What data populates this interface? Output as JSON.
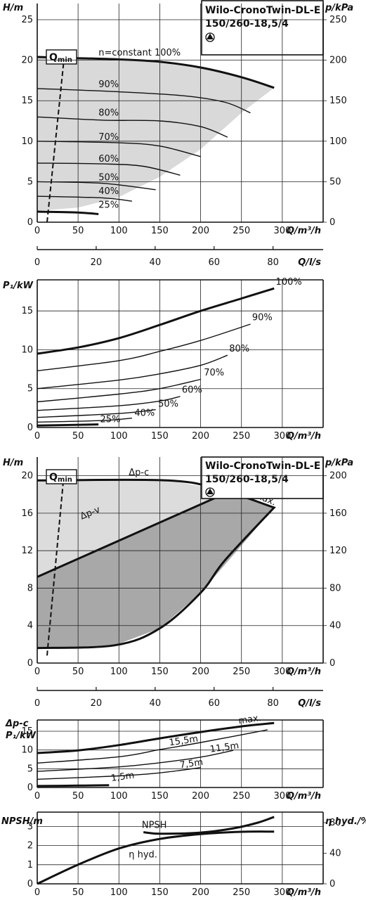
{
  "title_line1": "Wilo-CronoTwin-DL-E",
  "title_line2": "150/260-18,5/4",
  "qmin_label": "Q",
  "qmin_sub": "min",
  "chart_data": [
    {
      "id": "h1",
      "type": "line",
      "ylabel": "H/m",
      "y2label": "p/kPa",
      "xlabel": "Q/m³/h",
      "xlim": [
        0,
        350
      ],
      "ylim": [
        0,
        27
      ],
      "y2lim": [
        0,
        270
      ],
      "xticks": [
        "0",
        "50",
        "100",
        "150",
        "200",
        "250",
        "300"
      ],
      "yticks": [
        "0",
        "5",
        "10",
        "15",
        "20",
        "25"
      ],
      "y2ticks": [
        "0",
        "50",
        "100",
        "150",
        "200",
        "250"
      ],
      "envelope": [
        [
          0,
          20.4
        ],
        [
          100,
          20.1
        ],
        [
          200,
          19
        ],
        [
          250,
          17.8
        ],
        [
          290,
          16.6
        ],
        [
          250,
          13.5
        ],
        [
          200,
          9
        ],
        [
          150,
          5.6
        ],
        [
          100,
          3.1
        ],
        [
          50,
          1.8
        ],
        [
          0,
          1.4
        ]
      ],
      "qmin": [
        [
          12,
          0
        ],
        [
          33,
          20.4
        ]
      ],
      "series": [
        {
          "name": "n=constant 100%",
          "values": [
            [
              0,
              20.4
            ],
            [
              50,
              20.25
            ],
            [
              100,
              20.1
            ],
            [
              150,
              19.8
            ],
            [
              200,
              19.1
            ],
            [
              250,
              17.9
            ],
            [
              290,
              16.6
            ]
          ]
        },
        {
          "name": "90%",
          "values": [
            [
              0,
              16.5
            ],
            [
              100,
              16.1
            ],
            [
              180,
              15.6
            ],
            [
              230,
              14.8
            ],
            [
              261,
              13.5
            ]
          ]
        },
        {
          "name": "80%",
          "values": [
            [
              0,
              13
            ],
            [
              80,
              12.6
            ],
            [
              150,
              12.5
            ],
            [
              200,
              11.8
            ],
            [
              233,
              10.5
            ]
          ]
        },
        {
          "name": "70%",
          "values": [
            [
              0,
              10
            ],
            [
              100,
              9.8
            ],
            [
              150,
              9.4
            ],
            [
              200,
              8.1
            ]
          ]
        },
        {
          "name": "60%",
          "values": [
            [
              0,
              7.3
            ],
            [
              80,
              7.2
            ],
            [
              130,
              6.9
            ],
            [
              175,
              5.8
            ]
          ]
        },
        {
          "name": "50%",
          "values": [
            [
              0,
              5
            ],
            [
              80,
              4.8
            ],
            [
              145,
              4
            ]
          ]
        },
        {
          "name": "40%",
          "values": [
            [
              0,
              3.2
            ],
            [
              80,
              3
            ],
            [
              116,
              2.6
            ]
          ]
        },
        {
          "name": "25%",
          "values": [
            [
              0,
              1.3
            ],
            [
              50,
              1.2
            ],
            [
              75,
              1
            ]
          ]
        }
      ],
      "labels": [
        {
          "text": "n=constant 100%",
          "x": 75,
          "y": 20.4
        },
        {
          "text": "90%",
          "x": 75,
          "y": 16.5
        },
        {
          "text": "80%",
          "x": 75,
          "y": 13.0
        },
        {
          "text": "70%",
          "x": 75,
          "y": 10.0
        },
        {
          "text": "60%",
          "x": 75,
          "y": 7.3
        },
        {
          "text": "50%",
          "x": 75,
          "y": 5.0
        },
        {
          "text": "40%",
          "x": 75,
          "y": 3.3
        },
        {
          "text": "25%",
          "x": 75,
          "y": 1.6
        }
      ]
    },
    {
      "id": "ls1",
      "type": "axis",
      "xlabel": "Q/l/s",
      "xlim": [
        0,
        97
      ],
      "xticks": [
        "0",
        "20",
        "40",
        "60",
        "80"
      ]
    },
    {
      "id": "p1",
      "type": "line",
      "ylabel": "P₁/kW",
      "xlabel": "Q/m³/h",
      "xlim": [
        0,
        350
      ],
      "ylim": [
        0,
        19
      ],
      "xticks": [
        "0",
        "50",
        "100",
        "150",
        "200",
        "250",
        "300"
      ],
      "yticks": [
        "0",
        "5",
        "10",
        "15"
      ],
      "series": [
        {
          "name": "100%",
          "values": [
            [
              0,
              9.5
            ],
            [
              50,
              10.3
            ],
            [
              100,
              11.5
            ],
            [
              150,
              13.2
            ],
            [
              200,
              15
            ],
            [
              250,
              16.6
            ],
            [
              290,
              17.9
            ]
          ]
        },
        {
          "name": "90%",
          "values": [
            [
              0,
              7.3
            ],
            [
              100,
              8.6
            ],
            [
              150,
              9.8
            ],
            [
              200,
              11.2
            ],
            [
              261,
              13.3
            ]
          ]
        },
        {
          "name": "80%",
          "values": [
            [
              0,
              5
            ],
            [
              100,
              6.1
            ],
            [
              150,
              6.9
            ],
            [
              200,
              8
            ],
            [
              233,
              9.3
            ]
          ]
        },
        {
          "name": "70%",
          "values": [
            [
              0,
              3.3
            ],
            [
              100,
              4.3
            ],
            [
              150,
              5
            ],
            [
              200,
              6.2
            ]
          ]
        },
        {
          "name": "60%",
          "values": [
            [
              0,
              2.2
            ],
            [
              100,
              2.8
            ],
            [
              150,
              3.4
            ],
            [
              175,
              4
            ]
          ]
        },
        {
          "name": "50%",
          "values": [
            [
              0,
              1.3
            ],
            [
              100,
              1.8
            ],
            [
              145,
              2.3
            ]
          ]
        },
        {
          "name": "40%",
          "values": [
            [
              0,
              0.7
            ],
            [
              80,
              0.9
            ],
            [
              116,
              1.2
            ]
          ]
        },
        {
          "name": "25%",
          "values": [
            [
              0,
              0.25
            ],
            [
              75,
              0.4
            ]
          ]
        }
      ],
      "labels": [
        {
          "text": "100%",
          "x": 292,
          "y": 18.2
        },
        {
          "text": "90%",
          "x": 263,
          "y": 13.6
        },
        {
          "text": "80%",
          "x": 235,
          "y": 9.6
        },
        {
          "text": "70%",
          "x": 204,
          "y": 6.5
        },
        {
          "text": "60%",
          "x": 177,
          "y": 4.3
        },
        {
          "text": "50%",
          "x": 148,
          "y": 2.5
        },
        {
          "text": "40%",
          "x": 119,
          "y": 1.3
        },
        {
          "text": "25%",
          "x": 77,
          "y": 0.5
        }
      ]
    },
    {
      "id": "h2",
      "type": "area",
      "ylabel": "H/m",
      "y2label": "p/kPa",
      "xlabel": "Q/m³/h",
      "xlim": [
        0,
        350
      ],
      "ylim": [
        0,
        22
      ],
      "y2lim": [
        0,
        220
      ],
      "xticks": [
        "0",
        "50",
        "100",
        "150",
        "200",
        "250",
        "300"
      ],
      "yticks": [
        "0",
        "4",
        "8",
        "12",
        "16",
        "20"
      ],
      "y2ticks": [
        "0",
        "40",
        "80",
        "120",
        "160",
        "200"
      ],
      "light_area": [
        [
          0,
          19.5
        ],
        [
          160,
          19.5
        ],
        [
          225,
          18.5
        ],
        [
          290,
          16.6
        ],
        [
          235,
          18.3
        ],
        [
          0,
          9.2
        ]
      ],
      "dark_area": [
        [
          0,
          9.2
        ],
        [
          235,
          18.3
        ],
        [
          290,
          16.6
        ],
        [
          200,
          7.5
        ],
        [
          150,
          3.7
        ],
        [
          95,
          1.9
        ],
        [
          0,
          1.6
        ]
      ],
      "outline": [
        [
          0,
          19.5
        ],
        [
          160,
          19.5
        ],
        [
          225,
          18.5
        ],
        [
          290,
          16.6
        ],
        [
          230,
          11
        ],
        [
          200,
          7.5
        ],
        [
          150,
          3.7
        ],
        [
          95,
          1.9
        ],
        [
          0,
          1.6
        ]
      ],
      "dpv": [
        [
          0,
          9.2
        ],
        [
          235,
          18.3
        ]
      ],
      "qmin": [
        [
          12,
          0.8
        ],
        [
          32,
          19.5
        ]
      ],
      "labels": [
        {
          "text": "Δp-c",
          "x": 112,
          "y": 19.9
        },
        {
          "text": "Δp-v",
          "x": 55,
          "y": 15.2
        },
        {
          "text": "max.",
          "x": 264,
          "y": 17.6
        }
      ]
    },
    {
      "id": "ls2",
      "type": "axis",
      "xlabel": "Q/l/s",
      "xlim": [
        0,
        97
      ],
      "xticks": [
        "0",
        "20",
        "40",
        "60",
        "80"
      ]
    },
    {
      "id": "p2",
      "type": "line",
      "ylabel1": "Δp-c",
      "ylabel": "P₁/kW",
      "xlabel": "Q/m³/h",
      "xlim": [
        0,
        350
      ],
      "ylim": [
        0,
        18
      ],
      "xticks": [
        "0",
        "50",
        "100",
        "150",
        "200",
        "250",
        "300"
      ],
      "yticks": [
        "0",
        "5",
        "10",
        "15"
      ],
      "series": [
        {
          "name": "max.",
          "values": [
            [
              0,
              9.2
            ],
            [
              50,
              9.9
            ],
            [
              100,
              11.3
            ],
            [
              150,
              13.1
            ],
            [
              200,
              14.8
            ],
            [
              250,
              16.3
            ],
            [
              290,
              17.2
            ]
          ]
        },
        {
          "name": "15,5m",
          "values": [
            [
              0,
              6.5
            ],
            [
              100,
              8.2
            ],
            [
              150,
              10.1
            ],
            [
              200,
              12
            ],
            [
              282,
              15.4
            ]
          ]
        },
        {
          "name": "11,5m",
          "values": [
            [
              0,
              4.3
            ],
            [
              100,
              5.5
            ],
            [
              150,
              6.6
            ],
            [
              200,
              8.1
            ],
            [
              240,
              9.9
            ]
          ]
        },
        {
          "name": "7,5m",
          "values": [
            [
              0,
              2.2
            ],
            [
              100,
              3.1
            ],
            [
              150,
              3.9
            ],
            [
              200,
              5.3
            ]
          ]
        },
        {
          "name": "1,5m",
          "values": [
            [
              0,
              0.4
            ],
            [
              50,
              0.5
            ],
            [
              88,
              0.6
            ]
          ]
        }
      ],
      "labels": [
        {
          "text": "max.",
          "x": 247,
          "y": 16.8
        },
        {
          "text": "15,5m",
          "x": 162,
          "y": 11.0
        },
        {
          "text": "11,5m",
          "x": 212,
          "y": 9.2
        },
        {
          "text": "7,5m",
          "x": 175,
          "y": 5.0
        },
        {
          "text": "1,5m",
          "x": 91,
          "y": 1.5
        }
      ]
    },
    {
      "id": "np",
      "type": "line",
      "ylabel": "NPSH/m",
      "y2label": "η hyd./%",
      "xlabel": "Q/m³/h",
      "xlim": [
        0,
        350
      ],
      "ylim": [
        0,
        3.75
      ],
      "y2lim": [
        0,
        93.75
      ],
      "xticks": [
        "0",
        "50",
        "100",
        "150",
        "200",
        "250",
        "300"
      ],
      "yticks": [
        "0",
        "1",
        "2",
        "3"
      ],
      "y2ticks": [
        "0",
        "40",
        "80"
      ],
      "series": [
        {
          "name": "NPSH",
          "values": [
            [
              130,
              2.7
            ],
            [
              150,
              2.62
            ],
            [
              200,
              2.68
            ],
            [
              240,
              2.9
            ],
            [
              270,
              3.2
            ],
            [
              290,
              3.5
            ]
          ]
        },
        {
          "name": "η hyd.",
          "values": [
            [
              0,
              0
            ],
            [
              50,
              1
            ],
            [
              100,
              1.85
            ],
            [
              150,
              2.35
            ],
            [
              200,
              2.6
            ],
            [
              250,
              2.72
            ],
            [
              290,
              2.73
            ]
          ]
        }
      ],
      "labels": [
        {
          "text": "NPSH",
          "x": 128,
          "y": 2.85
        },
        {
          "text": "η hyd.",
          "x": 112,
          "y": 1.3
        }
      ]
    }
  ]
}
